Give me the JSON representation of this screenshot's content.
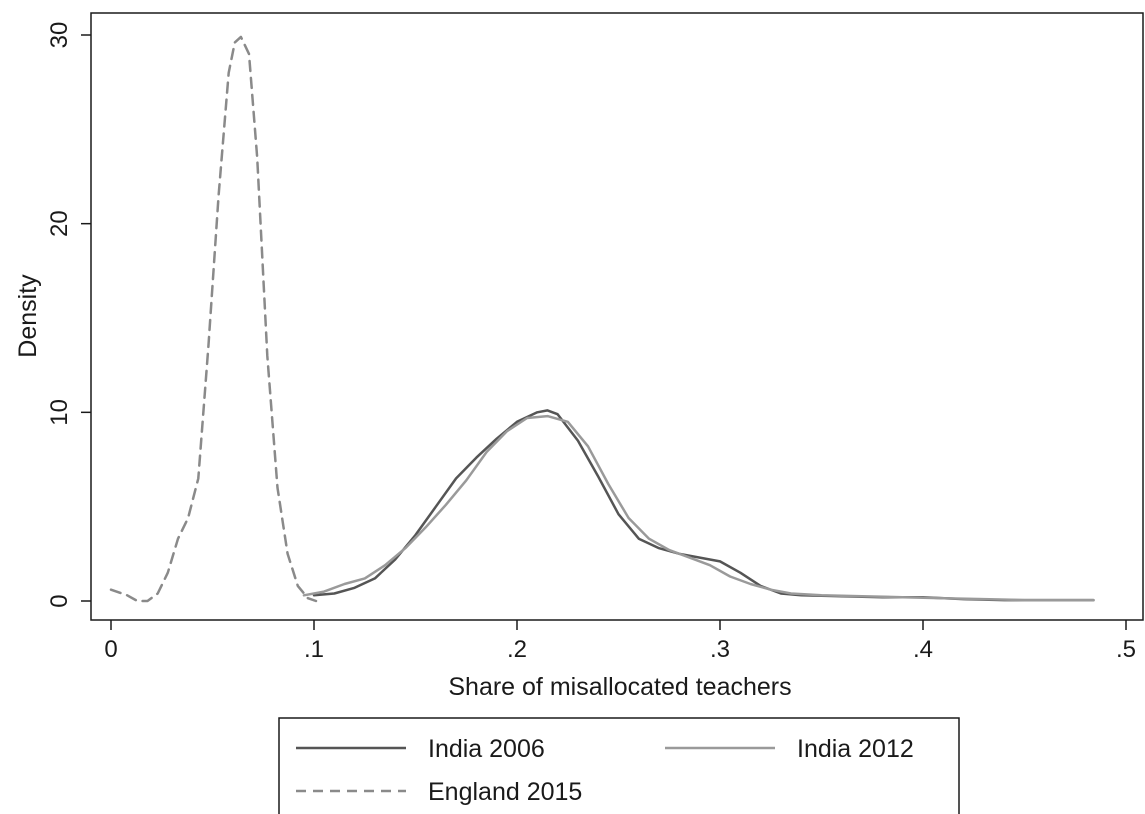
{
  "chart_data": {
    "type": "line",
    "xlabel": "Share of misallocated teachers",
    "ylabel": "Density",
    "xlim": [
      0,
      0.5
    ],
    "ylim": [
      0,
      30
    ],
    "x_ticks": [
      0,
      0.1,
      0.2,
      0.3,
      0.4,
      0.5
    ],
    "x_tick_labels": [
      "0",
      ".1",
      ".2",
      ".3",
      ".4",
      ".5"
    ],
    "y_ticks": [
      0,
      10,
      20,
      30
    ],
    "y_tick_labels": [
      "0",
      "10",
      "20",
      "30"
    ],
    "grid": false,
    "legend_position": "bottom",
    "series": [
      {
        "name": "India 2006",
        "color": "#555555",
        "dash": "solid",
        "x": [
          0.1,
          0.11,
          0.12,
          0.13,
          0.14,
          0.15,
          0.16,
          0.17,
          0.18,
          0.19,
          0.2,
          0.21,
          0.215,
          0.22,
          0.23,
          0.24,
          0.25,
          0.26,
          0.27,
          0.28,
          0.29,
          0.3,
          0.31,
          0.32,
          0.33,
          0.34,
          0.36,
          0.38,
          0.4,
          0.42,
          0.44,
          0.46,
          0.484
        ],
        "y": [
          0.3,
          0.4,
          0.7,
          1.2,
          2.2,
          3.5,
          5.0,
          6.5,
          7.6,
          8.6,
          9.5,
          10.0,
          10.1,
          9.9,
          8.5,
          6.6,
          4.6,
          3.3,
          2.8,
          2.5,
          2.3,
          2.1,
          1.5,
          0.8,
          0.4,
          0.3,
          0.25,
          0.2,
          0.2,
          0.1,
          0.05,
          0.05,
          0.05
        ]
      },
      {
        "name": "India 2012",
        "color": "#9a9a9a",
        "dash": "solid",
        "x": [
          0.095,
          0.105,
          0.115,
          0.125,
          0.135,
          0.145,
          0.155,
          0.165,
          0.175,
          0.185,
          0.195,
          0.205,
          0.215,
          0.225,
          0.235,
          0.245,
          0.255,
          0.265,
          0.275,
          0.285,
          0.295,
          0.305,
          0.315,
          0.325,
          0.335,
          0.35,
          0.37,
          0.39,
          0.41,
          0.43,
          0.45,
          0.47,
          0.484
        ],
        "y": [
          0.3,
          0.5,
          0.9,
          1.2,
          1.9,
          2.8,
          3.9,
          5.1,
          6.4,
          7.9,
          9.0,
          9.7,
          9.8,
          9.5,
          8.2,
          6.2,
          4.4,
          3.3,
          2.7,
          2.3,
          1.9,
          1.3,
          0.9,
          0.6,
          0.4,
          0.3,
          0.25,
          0.2,
          0.15,
          0.1,
          0.05,
          0.05,
          0.05
        ]
      },
      {
        "name": "England 2015",
        "color": "#8a8a8a",
        "dash": "dashed",
        "x": [
          0.0,
          0.008,
          0.013,
          0.018,
          0.023,
          0.028,
          0.033,
          0.038,
          0.043,
          0.048,
          0.053,
          0.058,
          0.061,
          0.064,
          0.068,
          0.072,
          0.077,
          0.082,
          0.087,
          0.092,
          0.097,
          0.101
        ],
        "y": [
          0.6,
          0.3,
          0.0,
          0.0,
          0.4,
          1.5,
          3.3,
          4.4,
          6.5,
          13.5,
          21.5,
          28.0,
          29.6,
          29.9,
          29.0,
          23.5,
          13.0,
          6.0,
          2.5,
          0.8,
          0.15,
          0.0
        ]
      }
    ]
  },
  "legend": {
    "items": [
      {
        "label": "India 2006"
      },
      {
        "label": "India 2012"
      },
      {
        "label": "England 2015"
      }
    ]
  }
}
